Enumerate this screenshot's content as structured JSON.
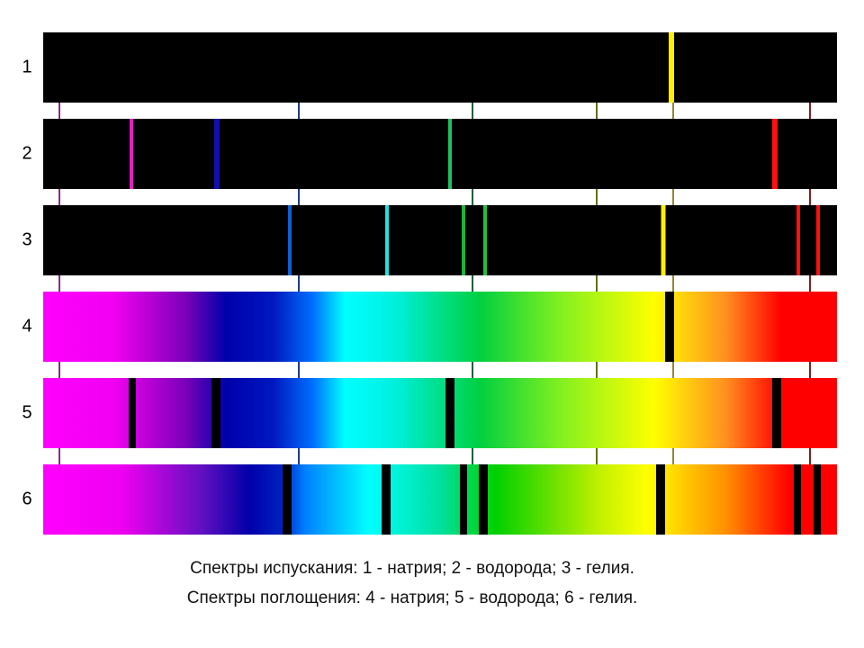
{
  "rows": [
    {
      "label": "1"
    },
    {
      "label": "2"
    },
    {
      "label": "3"
    },
    {
      "label": "4"
    },
    {
      "label": "5"
    },
    {
      "label": "6"
    }
  ],
  "caption": [
    "Спектры испускания: 1 - натрия; 2 - водорода; 3 - гелия.",
    "Спектры поглощения: 4 - натрия; 5 - водорода; 6 - гелия."
  ]
}
